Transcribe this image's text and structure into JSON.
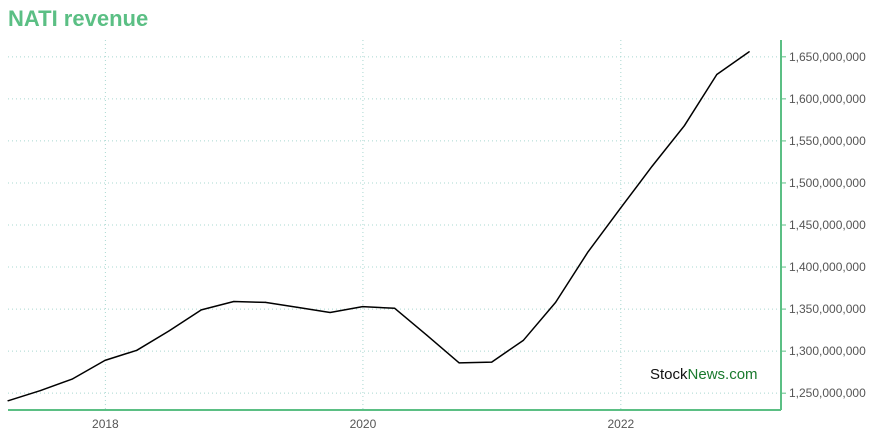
{
  "title": "NATI revenue",
  "watermark": {
    "part1": "Stock",
    "part2": "News.com"
  },
  "colors": {
    "title": "#5bbf84",
    "axis": "#5bbf84",
    "grid": "#a8d8d0",
    "line": "#000000",
    "watermark_dark": "#111111",
    "watermark_green": "#1a7a2e"
  },
  "chart_data": {
    "type": "line",
    "title": "NATI revenue",
    "xlabel": "",
    "ylabel": "",
    "x_ticks": [
      "2018",
      "2020",
      "2022"
    ],
    "y_ticks": [
      "1,250,000,000",
      "1,300,000,000",
      "1,350,000,000",
      "1,400,000,000",
      "1,450,000,000",
      "1,500,000,000",
      "1,550,000,000",
      "1,600,000,000",
      "1,650,000,000"
    ],
    "xlim": [
      "2017-03-31",
      "2023-03-31"
    ],
    "ylim": [
      1230000000,
      1670000000
    ],
    "grid": true,
    "series": [
      {
        "x": [
          "2017-03-31",
          "2017-06-30",
          "2017-09-30",
          "2017-12-31",
          "2018-03-31",
          "2018-06-30",
          "2018-09-30",
          "2018-12-31",
          "2019-03-31",
          "2019-06-30",
          "2019-09-30",
          "2019-12-31",
          "2020-03-31",
          "2020-06-30",
          "2020-09-30",
          "2020-12-31",
          "2021-03-31",
          "2021-06-30",
          "2021-09-30",
          "2021-12-31",
          "2022-03-31",
          "2022-06-30",
          "2022-09-30",
          "2022-12-31"
        ],
        "values": [
          1241000000,
          1253000000,
          1267000000,
          1289000000,
          1301000000,
          1324000000,
          1349000000,
          1359000000,
          1358000000,
          1352000000,
          1346000000,
          1353000000,
          1351000000,
          1319000000,
          1286000000,
          1287000000,
          1313000000,
          1358000000,
          1418000000,
          1470000000,
          1520000000,
          1568000000,
          1629000000,
          1656000000
        ]
      }
    ]
  }
}
